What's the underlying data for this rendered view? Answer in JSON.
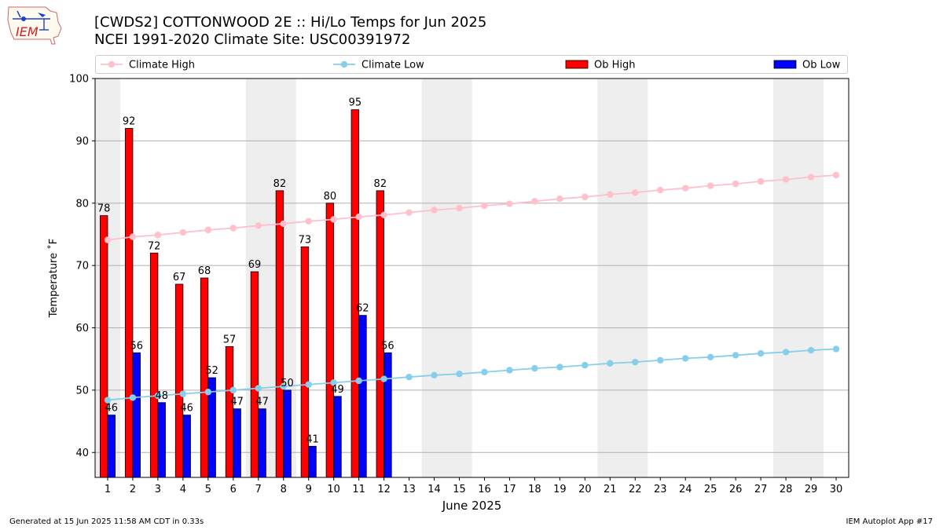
{
  "header": {
    "title_line1": "[CWDS2] COTTONWOOD 2E :: Hi/Lo Temps for Jun 2025",
    "title_line2": "NCEI 1991-2020 Climate Site: USC00391972",
    "logo_text": "IEM"
  },
  "footer": {
    "generated": "Generated at 15 Jun 2025 11:58 AM CDT in 0.33s",
    "app": "IEM Autoplot App #17"
  },
  "colors": {
    "climate_high": "#ffc0cb",
    "climate_low": "#87ceeb",
    "ob_high": "#ff0000",
    "ob_low": "#0000ff",
    "weekend_shade": "#eeeeee",
    "grid": "#b0b0b0"
  },
  "chart_data": {
    "type": "bar",
    "xlabel": "June 2025",
    "ylabel": "Temperature ˚F",
    "ylim": [
      36,
      100
    ],
    "yticks": [
      40,
      50,
      60,
      70,
      80,
      90,
      100
    ],
    "grid": "horizontal",
    "legend_placement": "top",
    "days": [
      1,
      2,
      3,
      4,
      5,
      6,
      7,
      8,
      9,
      10,
      11,
      12,
      13,
      14,
      15,
      16,
      17,
      18,
      19,
      20,
      21,
      22,
      23,
      24,
      25,
      26,
      27,
      28,
      29,
      30
    ],
    "weekend_day_pairs": [
      [
        1,
        1
      ],
      [
        7,
        8
      ],
      [
        14,
        15
      ],
      [
        21,
        22
      ],
      [
        28,
        29
      ]
    ],
    "series": [
      {
        "name": "Climate High",
        "kind": "line",
        "values": [
          74.1,
          74.6,
          74.9,
          75.3,
          75.7,
          76.0,
          76.4,
          76.7,
          77.1,
          77.4,
          77.8,
          78.1,
          78.5,
          78.9,
          79.2,
          79.6,
          79.9,
          80.3,
          80.7,
          81.0,
          81.4,
          81.7,
          82.1,
          82.4,
          82.8,
          83.1,
          83.5,
          83.8,
          84.2,
          84.5
        ]
      },
      {
        "name": "Climate Low",
        "kind": "line",
        "values": [
          48.4,
          48.8,
          49.1,
          49.4,
          49.7,
          50.0,
          50.3,
          50.6,
          50.9,
          51.2,
          51.5,
          51.8,
          52.1,
          52.4,
          52.6,
          52.9,
          53.2,
          53.5,
          53.7,
          54.0,
          54.3,
          54.5,
          54.8,
          55.1,
          55.3,
          55.6,
          55.9,
          56.1,
          56.4,
          56.6
        ]
      },
      {
        "name": "Ob High",
        "kind": "bar",
        "values": [
          78,
          92,
          72,
          67,
          68,
          57,
          69,
          82,
          73,
          80,
          95,
          82
        ]
      },
      {
        "name": "Ob Low",
        "kind": "bar",
        "values": [
          46,
          56,
          48,
          46,
          52,
          47,
          47,
          50,
          41,
          49,
          62,
          56
        ]
      }
    ]
  }
}
